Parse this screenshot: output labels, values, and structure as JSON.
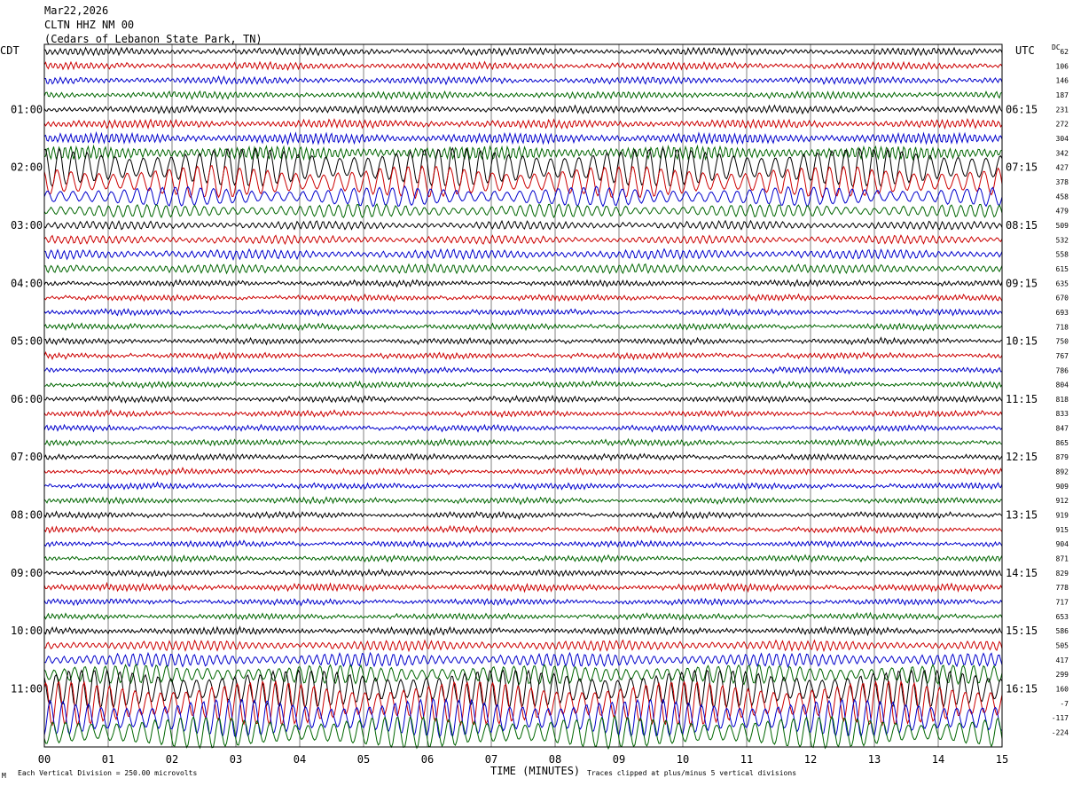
{
  "header": {
    "date": "Mar22,2026",
    "station": "CLTN HHZ NM 00",
    "location": "(Cedars of Lebanon State Park, TN)"
  },
  "axes": {
    "left_tz": "CDT",
    "right_tz": "UTC",
    "dc_label": "DC"
  },
  "footer": {
    "scale_note": "Each Vertical Division =  250.00 microvolts",
    "xlabel": "TIME (MINUTES)",
    "clip_note": "Traces clipped at plus/minus 5 vertical divisions",
    "mark": "M"
  },
  "colors": {
    "trace_cycle": [
      "#000000",
      "#cc0000",
      "#0000cc",
      "#006600"
    ],
    "grid": "#808080"
  },
  "chart_data": {
    "type": "line",
    "title": "",
    "xlabel": "TIME (MINUTES)",
    "ylabel": "",
    "xlim": [
      0,
      15
    ],
    "x_ticks": [
      "00",
      "01",
      "02",
      "03",
      "04",
      "05",
      "06",
      "07",
      "08",
      "09",
      "10",
      "11",
      "12",
      "13",
      "14",
      "15"
    ],
    "left_time_labels": [
      "01:00",
      "02:00",
      "03:00",
      "04:00",
      "05:00",
      "06:00",
      "07:00",
      "08:00",
      "09:00",
      "10:00",
      "11:00"
    ],
    "right_time_labels": [
      "06:15",
      "07:15",
      "08:15",
      "09:15",
      "10:15",
      "11:15",
      "12:15",
      "13:15",
      "14:15",
      "15:15",
      "16:15"
    ],
    "dc_offsets": [
      "62",
      "106",
      "146",
      "187",
      "231",
      "272",
      "304",
      "342",
      "427",
      "378",
      "458",
      "479",
      "509",
      "532",
      "558",
      "615",
      "635",
      "670",
      "693",
      "718",
      "750",
      "767",
      "786",
      "804",
      "818",
      "833",
      "847",
      "865",
      "879",
      "892",
      "909",
      "912",
      "919",
      "915",
      "904",
      "871",
      "829",
      "778",
      "717",
      "653",
      "586",
      "505",
      "417",
      "299",
      "160",
      "-7",
      "-117",
      "-224"
    ],
    "trace_amplitude": [
      1,
      1,
      1,
      1,
      1,
      1.2,
      1.5,
      2,
      6,
      5,
      3,
      2,
      1.2,
      1.2,
      1.4,
      1.3,
      0.8,
      0.8,
      0.8,
      0.8,
      0.8,
      0.8,
      0.8,
      0.8,
      0.8,
      0.8,
      0.8,
      0.8,
      0.8,
      0.8,
      0.8,
      0.8,
      0.8,
      0.8,
      0.8,
      0.8,
      0.8,
      1,
      0.8,
      0.8,
      1,
      1.5,
      2,
      3,
      6,
      7,
      6,
      5
    ],
    "trace_period_min": [
      0.08,
      0.08,
      0.08,
      0.08,
      0.08,
      0.08,
      0.08,
      0.09,
      0.22,
      0.22,
      0.2,
      0.15,
      0.1,
      0.1,
      0.1,
      0.1,
      0.07,
      0.07,
      0.07,
      0.07,
      0.07,
      0.07,
      0.07,
      0.07,
      0.07,
      0.07,
      0.07,
      0.07,
      0.07,
      0.07,
      0.07,
      0.07,
      0.07,
      0.07,
      0.07,
      0.07,
      0.07,
      0.07,
      0.07,
      0.07,
      0.07,
      0.1,
      0.12,
      0.16,
      0.2,
      0.2,
      0.2,
      0.2
    ],
    "traces_per_hour": 4,
    "first_trace_time_cdt": "00:15"
  }
}
